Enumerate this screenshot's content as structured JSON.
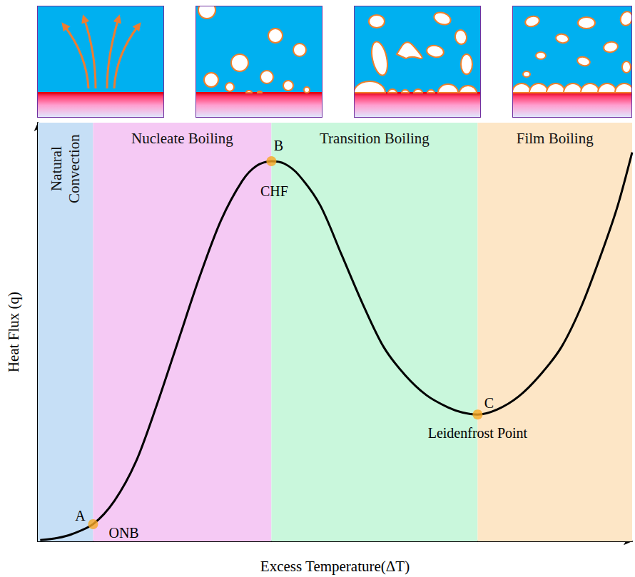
{
  "chart_data": {
    "type": "line",
    "x_label": "Excess Temperature(ΔT)",
    "y_label": "Heat Flux (q)",
    "x": [
      0.4,
      3.3,
      5.7,
      9.3,
      12.9,
      16.5,
      20.0,
      23.6,
      27.2,
      30.8,
      34.4,
      36.8,
      39.3,
      41.5,
      43.9,
      47.5,
      51.1,
      54.7,
      58.2,
      61.8,
      65.4,
      69.0,
      71.4,
      74.0,
      77.3,
      80.9,
      84.5,
      88.1,
      91.6,
      95.2,
      97.6,
      100
    ],
    "values": [
      0.3,
      0.8,
      1.7,
      4.1,
      9.7,
      19.0,
      32.5,
      47.8,
      63.1,
      76.6,
      86.1,
      89.7,
      90.8,
      90.2,
      87.5,
      80.3,
      68.5,
      56.6,
      46.4,
      39.7,
      34.9,
      32.0,
      30.8,
      30.3,
      31.5,
      34.6,
      39.7,
      46.4,
      56.6,
      70.2,
      80.3,
      92.9
    ],
    "color": "#000000",
    "xlim": [
      0,
      100
    ],
    "ylim": [
      0,
      100
    ],
    "xticks": [],
    "yticks": [],
    "grid": false,
    "tick_labels": false,
    "regions": [
      {
        "label": "Natural Convection",
        "start": 0,
        "end": 9.3,
        "color": "#c6dff6"
      },
      {
        "label": "Nucleate Boiling",
        "start": 9.3,
        "end": 39.3,
        "color": "#f5c9f4"
      },
      {
        "label": "Transition Boiling",
        "start": 39.3,
        "end": 74.0,
        "color": "#c9f7dc"
      },
      {
        "label": "Film Boiling",
        "start": 74.0,
        "end": 100,
        "color": "#fde6c6"
      }
    ],
    "points": [
      {
        "label": "A",
        "name": "ONB",
        "x": 9.3,
        "y": 4.1,
        "color": "#f7a823"
      },
      {
        "label": "B",
        "name": "CHF",
        "x": 39.3,
        "y": 90.8,
        "color": "#f7a823"
      },
      {
        "label": "C",
        "name": "Leidenfrost Point",
        "x": 74.0,
        "y": 30.3,
        "color": "#f7a823"
      }
    ]
  }
}
